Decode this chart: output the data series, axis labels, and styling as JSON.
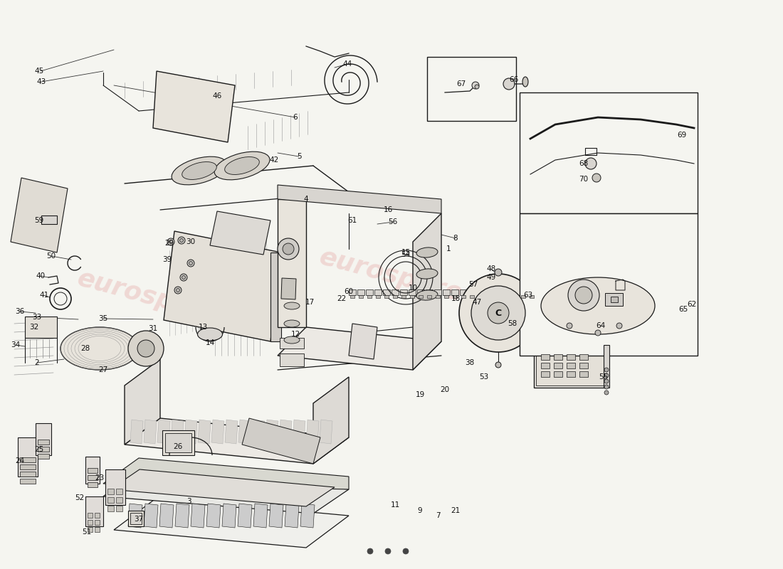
{
  "bg_color": "#f5f5f0",
  "line_color": "#1a1a1a",
  "watermark_text": "eurospares",
  "watermark_color": "#cc3333",
  "watermark_alpha": 0.15,
  "dot_color": "#444444",
  "label_fontsize": 7.5,
  "label_color": "#111111"
}
